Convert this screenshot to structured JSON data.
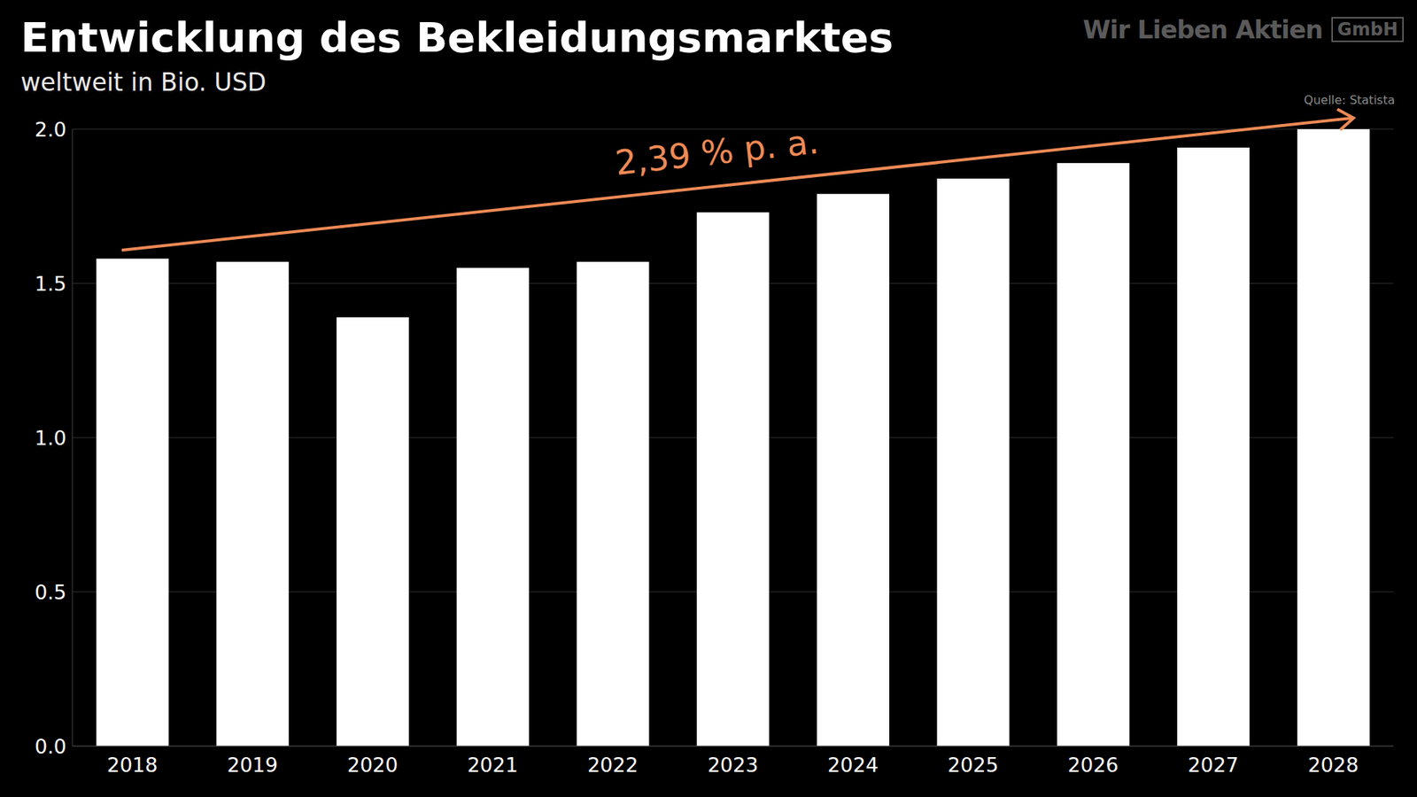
{
  "chart_data": {
    "type": "bar",
    "title": "Entwicklung des Bekleidungsmarktes",
    "subtitle": "weltweit in Bio. USD",
    "brand": "Wir Lieben Aktien",
    "brand_suffix": "GmbH",
    "source": "Quelle: Statista",
    "annotation": "2,39 % p. a.",
    "categories": [
      "2018",
      "2019",
      "2020",
      "2021",
      "2022",
      "2023",
      "2024",
      "2025",
      "2026",
      "2027",
      "2028"
    ],
    "values": [
      1.58,
      1.57,
      1.39,
      1.55,
      1.57,
      1.73,
      1.79,
      1.84,
      1.89,
      1.94,
      2.0
    ],
    "color": "#ffffff",
    "ylim": [
      0,
      2
    ],
    "yticks": [
      {
        "value": 0,
        "label": "0.0"
      },
      {
        "value": 0.5,
        "label": "0.5"
      },
      {
        "value": 1,
        "label": "1.0"
      },
      {
        "value": 1.5,
        "label": "1.5"
      },
      {
        "value": 2,
        "label": "2.0"
      }
    ],
    "grid": true
  }
}
